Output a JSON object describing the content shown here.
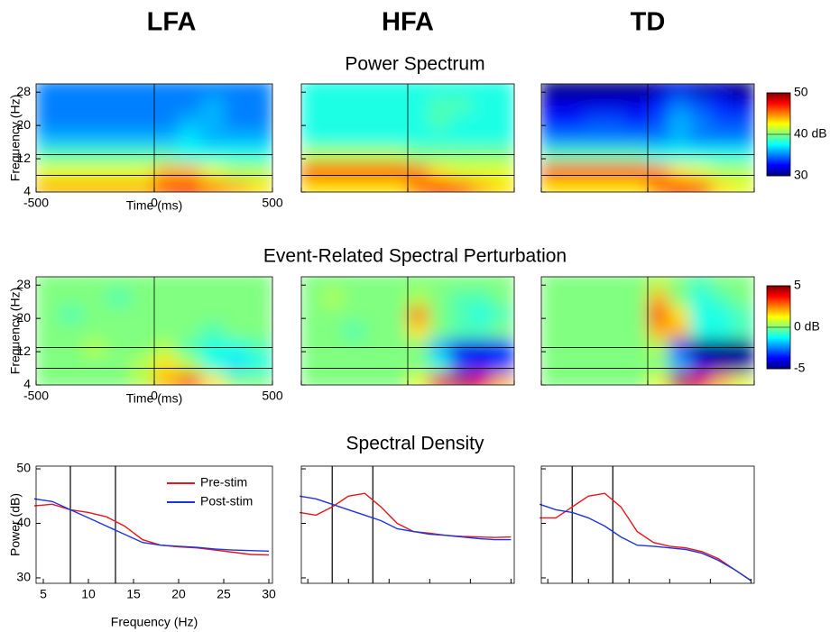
{
  "groups": [
    "LFA",
    "HFA",
    "TD"
  ],
  "chart_data": [
    {
      "type": "heatmap",
      "title": "Power Spectrum",
      "xlabel": "Time (ms)",
      "ylabel": "Frequency (Hz)",
      "xlim": [
        -500,
        500
      ],
      "xticks": [
        -500,
        0,
        500
      ],
      "ylim": [
        4,
        30
      ],
      "yticks": [
        4,
        12,
        20,
        28
      ],
      "x": [
        -450,
        -350,
        -250,
        -150,
        -50,
        50,
        150,
        250,
        350,
        450
      ],
      "y": [
        5,
        9,
        13,
        17,
        21,
        25,
        29
      ],
      "vlines": [
        0
      ],
      "hlines": [
        8,
        13
      ],
      "colorbar": {
        "lim": [
          30,
          50
        ],
        "ticks": [
          30,
          {
            "value": 40,
            "label": "40 dB"
          },
          50
        ]
      },
      "panels": [
        {
          "values": [
            [
              44,
              44,
              44,
              44,
              44,
              46,
              47,
              45,
              44,
              43
            ],
            [
              42,
              42,
              42,
              42,
              42,
              44,
              44,
              42,
              41,
              41
            ],
            [
              39,
              39,
              39,
              39,
              39,
              39,
              38,
              38,
              38,
              38
            ],
            [
              36,
              36,
              36,
              36,
              36,
              36,
              37,
              36,
              36,
              36
            ],
            [
              35,
              35,
              35,
              35,
              35,
              35,
              36,
              36,
              35,
              35
            ],
            [
              35,
              35,
              35,
              35,
              35,
              35,
              35,
              36,
              35,
              35
            ],
            [
              35,
              35,
              35,
              35,
              35,
              35,
              35,
              35,
              35,
              35
            ]
          ]
        },
        {
          "values": [
            [
              43,
              43,
              43,
              43,
              43,
              45,
              47,
              46,
              44,
              43
            ],
            [
              46,
              46,
              46,
              46,
              46,
              45,
              43,
              42,
              42,
              42
            ],
            [
              41,
              41,
              41,
              41,
              41,
              40,
              40,
              40,
              40,
              40
            ],
            [
              38,
              38,
              38,
              38,
              38,
              38,
              38,
              38,
              38,
              38
            ],
            [
              38,
              38,
              38,
              38,
              38,
              38,
              39,
              38,
              38,
              38
            ],
            [
              38,
              38,
              38,
              38,
              38,
              38,
              39,
              39,
              38,
              38
            ],
            [
              38,
              38,
              38,
              38,
              38,
              38,
              38,
              38,
              38,
              38
            ]
          ]
        },
        {
          "values": [
            [
              43,
              43,
              43,
              43,
              43,
              45,
              47,
              46,
              43,
              42
            ],
            [
              46,
              46,
              46,
              46,
              46,
              45,
              43,
              42,
              41,
              41
            ],
            [
              39,
              39,
              39,
              39,
              39,
              38,
              38,
              38,
              38,
              38
            ],
            [
              35,
              35,
              35,
              35,
              35,
              35,
              36,
              35,
              35,
              35
            ],
            [
              33,
              33,
              34,
              34,
              33,
              34,
              36,
              35,
              34,
              34
            ],
            [
              32,
              32,
              32,
              32,
              32,
              33,
              35,
              34,
              33,
              32
            ],
            [
              30,
              30,
              30,
              30,
              30,
              31,
              32,
              31,
              31,
              30
            ]
          ]
        }
      ]
    },
    {
      "type": "heatmap",
      "title": "Event-Related Spectral Perturbation",
      "xlabel": "Time (ms)",
      "ylabel": "Frequency (Hz)",
      "xlim": [
        -500,
        500
      ],
      "xticks": [
        -500,
        0,
        500
      ],
      "ylim": [
        4,
        30
      ],
      "yticks": [
        4,
        12,
        20,
        28
      ],
      "x": [
        -450,
        -350,
        -250,
        -150,
        -50,
        50,
        150,
        250,
        350,
        450
      ],
      "y": [
        5,
        9,
        13,
        17,
        21,
        25,
        29
      ],
      "vlines": [
        0
      ],
      "hlines": [
        8,
        13
      ],
      "colorbar": {
        "lim": [
          -5,
          5
        ],
        "ticks": [
          -5,
          {
            "value": 0,
            "label": "0 dB"
          },
          5
        ]
      },
      "panels": [
        {
          "values": [
            [
              0,
              0,
              0,
              0,
              0.5,
              2,
              3,
              1.5,
              0,
              0
            ],
            [
              0,
              0,
              0,
              0,
              0.5,
              1.5,
              0.5,
              -1,
              -1.5,
              -1
            ],
            [
              0,
              0,
              0.5,
              0,
              0,
              0.5,
              -0.5,
              -1,
              -1,
              -0.5
            ],
            [
              0,
              0,
              0,
              0,
              0,
              0,
              0,
              -0.5,
              0,
              0
            ],
            [
              0,
              -0.5,
              0,
              0,
              0,
              0,
              0,
              0,
              0,
              0
            ],
            [
              0,
              0,
              0,
              -0.5,
              0,
              0,
              0,
              0,
              0,
              0
            ],
            [
              0,
              0,
              0,
              0,
              0,
              0,
              0,
              0,
              0,
              0
            ]
          ]
        },
        {
          "values": [
            [
              0,
              0,
              0,
              0,
              0,
              1,
              4,
              4.5,
              4,
              2
            ],
            [
              0,
              0,
              0,
              0,
              0,
              0,
              -1,
              -3,
              -3.5,
              -3
            ],
            [
              0,
              0,
              0,
              0,
              0,
              0,
              -2,
              -4,
              -4,
              -3.5
            ],
            [
              0,
              0,
              -0.5,
              0,
              0,
              1.5,
              0,
              -0.5,
              -0.5,
              0
            ],
            [
              0,
              0,
              0,
              0,
              0,
              2.5,
              0,
              -0.5,
              -1,
              -0.5
            ],
            [
              0,
              0.5,
              0,
              0,
              0,
              0.5,
              0,
              -0.5,
              -0.5,
              0
            ],
            [
              0,
              0,
              0,
              0,
              0,
              0,
              0,
              0,
              0,
              0
            ]
          ]
        },
        {
          "values": [
            [
              0,
              0,
              0,
              0,
              0,
              1,
              4.5,
              4,
              2,
              1
            ],
            [
              0,
              0,
              0,
              0,
              0,
              0,
              -2,
              -4,
              -4.5,
              -4.5
            ],
            [
              0,
              0,
              0,
              0,
              0,
              0.5,
              -3,
              -5,
              -5,
              -5
            ],
            [
              0,
              0,
              0,
              0,
              0,
              2,
              2,
              -1,
              -1,
              -0.5
            ],
            [
              0,
              0,
              0,
              0,
              0,
              3,
              1.5,
              -1,
              -1,
              -0.5
            ],
            [
              0,
              0,
              0,
              0,
              0,
              2,
              0,
              -1,
              -0.5,
              0
            ],
            [
              0,
              0,
              0,
              0,
              0,
              0.5,
              0,
              -0.5,
              0,
              0
            ]
          ]
        }
      ]
    },
    {
      "type": "line",
      "title": "Spectral Density",
      "xlabel": "Frequency (Hz)",
      "ylabel": "Power (dB)",
      "xlim": [
        4.2,
        30.4
      ],
      "xticks": [
        5,
        10,
        15,
        20,
        25,
        30
      ],
      "ylim": [
        29,
        50.5
      ],
      "yticks": [
        30,
        40,
        50
      ],
      "vlines": [
        8,
        13
      ],
      "x": [
        4,
        6,
        8,
        10,
        12,
        14,
        16,
        18,
        20,
        22,
        24,
        26,
        28,
        30
      ],
      "series": [
        {
          "name": "Pre-stim",
          "color": "#e8141b"
        },
        {
          "name": "Post-stim",
          "color": "#1c34e0"
        }
      ],
      "panels": [
        {
          "values": [
            [
              43.2,
              43.5,
              42.5,
              42,
              41.2,
              39.5,
              37,
              36,
              35.7,
              35.5,
              35.1,
              34.7,
              34.3,
              34.2
            ],
            [
              44.5,
              44,
              42.5,
              41,
              39.5,
              38,
              36.5,
              36,
              35.8,
              35.6,
              35.3,
              35.1,
              35,
              34.9
            ]
          ]
        },
        {
          "values": [
            [
              42,
              41.5,
              43,
              45,
              45.5,
              43,
              40,
              38.5,
              38.2,
              37.8,
              37.6,
              37.5,
              37.4,
              37.5
            ],
            [
              45,
              44.5,
              43.5,
              42.5,
              41.5,
              40.5,
              39,
              38.5,
              38,
              37.8,
              37.5,
              37.2,
              37,
              37
            ]
          ]
        },
        {
          "values": [
            [
              41,
              41,
              43,
              45,
              45.5,
              43,
              38.5,
              36.5,
              35.8,
              35.5,
              34.8,
              33.5,
              31.5,
              29.5
            ],
            [
              43.5,
              42.5,
              42,
              41,
              39.5,
              37.5,
              36,
              35.8,
              35.5,
              35.2,
              34.5,
              33.2,
              31.5,
              29.5
            ]
          ]
        }
      ]
    }
  ]
}
